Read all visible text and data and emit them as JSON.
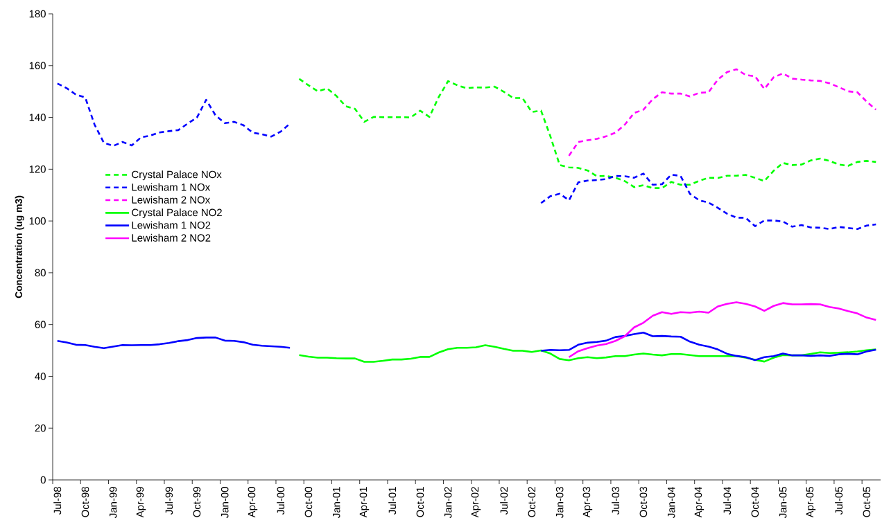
{
  "chart_data": {
    "type": "line",
    "ylabel": "Concentration (ug m3)",
    "categories": [
      "Jul-98",
      null,
      null,
      "Oct-98",
      null,
      null,
      "Jan-99",
      null,
      null,
      "Apr-99",
      null,
      null,
      "Jul-99",
      null,
      null,
      "Oct-99",
      null,
      null,
      "Jan-00",
      null,
      null,
      "Apr-00",
      null,
      null,
      "Jul-00",
      null,
      null,
      "Oct-00",
      null,
      null,
      "Jan-01",
      null,
      null,
      "Apr-01",
      null,
      null,
      "Jul-01",
      null,
      null,
      "Oct-01",
      null,
      null,
      "Jan-02",
      null,
      null,
      "Apr-02",
      null,
      null,
      "Jul-02",
      null,
      null,
      "Oct-02",
      null,
      null,
      "Jan-03",
      null,
      null,
      "Apr-03",
      null,
      null,
      "Jul-03",
      null,
      null,
      "Oct-03",
      null,
      null,
      "Jan-04",
      null,
      null,
      "Apr-04",
      null,
      null,
      "Jul-04",
      null,
      null,
      "Oct-04",
      null,
      null,
      "Jan-05",
      null,
      null,
      "Apr-05",
      null,
      null,
      "Jul-05",
      null,
      null,
      "Oct-05",
      null
    ],
    "series": [
      {
        "name": "Crystal Palace NOx",
        "color": "#00ff00",
        "line_style": "dashed",
        "values": [
          null,
          null,
          null,
          null,
          null,
          null,
          null,
          null,
          null,
          null,
          null,
          null,
          null,
          null,
          null,
          null,
          null,
          null,
          null,
          null,
          null,
          null,
          null,
          null,
          null,
          null,
          154.9,
          152.4,
          150.1,
          151.2,
          148.3,
          144.3,
          143.3,
          138.3,
          140.2,
          140.1,
          140.1,
          140.1,
          140.0,
          142.6,
          140.2,
          147.9,
          154.0,
          152.4,
          151.3,
          151.6,
          151.5,
          151.9,
          149.9,
          147.5,
          147.5,
          142.1,
          142.6,
          132.7,
          121.6,
          120.7,
          120.5,
          119.5,
          117.3,
          117.4,
          116.7,
          115.4,
          113.1,
          113.8,
          112.7,
          112.7,
          115.1,
          114.0,
          114.0,
          115.5,
          116.7,
          116.6,
          117.5,
          117.5,
          117.8,
          116.7,
          115.4,
          119.4,
          122.4,
          121.6,
          121.8,
          123.4,
          124.1,
          123.2,
          121.8,
          121.3,
          122.8,
          123.2,
          122.8
        ]
      },
      {
        "name": "Lewisham 1 NOx",
        "color": "#0000ff",
        "line_style": "dashed",
        "values": [
          153.1,
          151.3,
          148.8,
          147.7,
          137.2,
          130.2,
          129.0,
          130.5,
          129.2,
          132.3,
          133.0,
          134.2,
          134.7,
          135.1,
          137.6,
          139.9,
          146.8,
          140.8,
          137.8,
          138.3,
          137.0,
          134.1,
          133.5,
          132.6,
          134.5,
          137.6,
          null,
          null,
          null,
          null,
          null,
          null,
          null,
          null,
          null,
          null,
          null,
          null,
          null,
          null,
          null,
          null,
          null,
          null,
          null,
          null,
          null,
          null,
          null,
          null,
          null,
          null,
          106.9,
          109.6,
          110.5,
          108.0,
          114.9,
          115.6,
          115.8,
          116.2,
          117.4,
          117.3,
          116.7,
          118.3,
          114.0,
          114.2,
          117.9,
          117.4,
          110.5,
          108.0,
          107.1,
          105.1,
          102.8,
          101.3,
          101.2,
          98.0,
          100.2,
          100.2,
          99.8,
          97.8,
          98.4,
          97.5,
          97.4,
          96.9,
          97.7,
          97.3,
          96.9,
          98.2,
          98.7
        ]
      },
      {
        "name": "Lewisham 2 NOx",
        "color": "#ff00ff",
        "line_style": "dashed",
        "values": [
          null,
          null,
          null,
          null,
          null,
          null,
          null,
          null,
          null,
          null,
          null,
          null,
          null,
          null,
          null,
          null,
          null,
          null,
          null,
          null,
          null,
          null,
          null,
          null,
          null,
          null,
          null,
          null,
          null,
          null,
          null,
          null,
          null,
          null,
          null,
          null,
          null,
          null,
          null,
          null,
          null,
          null,
          null,
          null,
          null,
          null,
          null,
          null,
          null,
          null,
          null,
          null,
          null,
          null,
          null,
          125.2,
          130.5,
          131.2,
          131.7,
          132.7,
          134.1,
          137.2,
          141.7,
          143.0,
          147.0,
          149.7,
          149.2,
          149.2,
          148.1,
          149.5,
          149.7,
          154.6,
          157.5,
          158.6,
          156.4,
          155.9,
          151.0,
          155.5,
          157.0,
          155.0,
          154.6,
          154.3,
          154.1,
          153.2,
          151.7,
          150.1,
          149.7,
          146.1,
          143.0
        ]
      },
      {
        "name": "Crystal Palace NO2",
        "color": "#00ff00",
        "line_style": "solid",
        "values": [
          null,
          null,
          null,
          null,
          null,
          null,
          null,
          null,
          null,
          null,
          null,
          null,
          null,
          null,
          null,
          null,
          null,
          null,
          null,
          null,
          null,
          null,
          null,
          null,
          null,
          null,
          48.2,
          47.6,
          47.2,
          47.2,
          47.0,
          46.9,
          46.9,
          45.6,
          45.6,
          46.0,
          46.5,
          46.5,
          46.8,
          47.5,
          47.5,
          49.2,
          50.5,
          51.0,
          51.0,
          51.2,
          52.0,
          51.4,
          50.6,
          49.9,
          49.9,
          49.4,
          50.0,
          48.8,
          46.7,
          46.2,
          47.0,
          47.4,
          47.0,
          47.3,
          47.8,
          47.8,
          48.4,
          48.8,
          48.4,
          48.1,
          48.6,
          48.6,
          48.2,
          47.8,
          47.8,
          47.8,
          47.8,
          47.8,
          47.2,
          46.4,
          45.7,
          47.2,
          48.2,
          48.1,
          48.1,
          48.7,
          49.3,
          49.0,
          49.1,
          49.3,
          49.6,
          50.1,
          50.4
        ]
      },
      {
        "name": "Lewisham 1 NO2",
        "color": "#0000ff",
        "line_style": "solid",
        "values": [
          53.7,
          53.1,
          52.2,
          52.1,
          51.4,
          50.9,
          51.5,
          52.1,
          52.0,
          52.1,
          52.1,
          52.4,
          52.9,
          53.6,
          54.0,
          54.8,
          55.0,
          55.0,
          53.8,
          53.7,
          53.2,
          52.2,
          51.8,
          51.6,
          51.4,
          51.0,
          null,
          null,
          null,
          null,
          null,
          null,
          null,
          null,
          null,
          null,
          null,
          null,
          null,
          null,
          null,
          null,
          null,
          null,
          null,
          null,
          null,
          null,
          null,
          null,
          null,
          null,
          49.9,
          50.2,
          50.1,
          50.2,
          52.2,
          53.0,
          53.3,
          53.8,
          55.2,
          55.6,
          56.3,
          56.9,
          55.5,
          55.6,
          55.4,
          55.3,
          53.4,
          52.2,
          51.5,
          50.4,
          48.7,
          47.9,
          47.4,
          46.3,
          47.4,
          47.8,
          48.8,
          48.1,
          48.1,
          47.9,
          48.1,
          47.9,
          48.5,
          48.7,
          48.5,
          49.6,
          50.3
        ]
      },
      {
        "name": "Lewisham 2 NO2",
        "color": "#ff00ff",
        "line_style": "solid",
        "values": [
          null,
          null,
          null,
          null,
          null,
          null,
          null,
          null,
          null,
          null,
          null,
          null,
          null,
          null,
          null,
          null,
          null,
          null,
          null,
          null,
          null,
          null,
          null,
          null,
          null,
          null,
          null,
          null,
          null,
          null,
          null,
          null,
          null,
          null,
          null,
          null,
          null,
          null,
          null,
          null,
          null,
          null,
          null,
          null,
          null,
          null,
          null,
          null,
          null,
          null,
          null,
          null,
          null,
          null,
          null,
          47.4,
          49.7,
          50.9,
          51.9,
          52.5,
          53.7,
          55.5,
          58.9,
          60.7,
          63.4,
          64.8,
          64.1,
          64.8,
          64.6,
          65.0,
          64.6,
          67.0,
          68.0,
          68.6,
          68.0,
          67.0,
          65.3,
          67.2,
          68.3,
          67.8,
          67.8,
          67.9,
          67.8,
          66.8,
          66.2,
          65.2,
          64.3,
          62.7,
          61.8
        ]
      }
    ],
    "ylim": [
      0,
      180
    ],
    "yticks": [
      0,
      20,
      40,
      60,
      80,
      100,
      120,
      140,
      160,
      180
    ],
    "grid": false,
    "legend": "top left",
    "marker": "none"
  }
}
